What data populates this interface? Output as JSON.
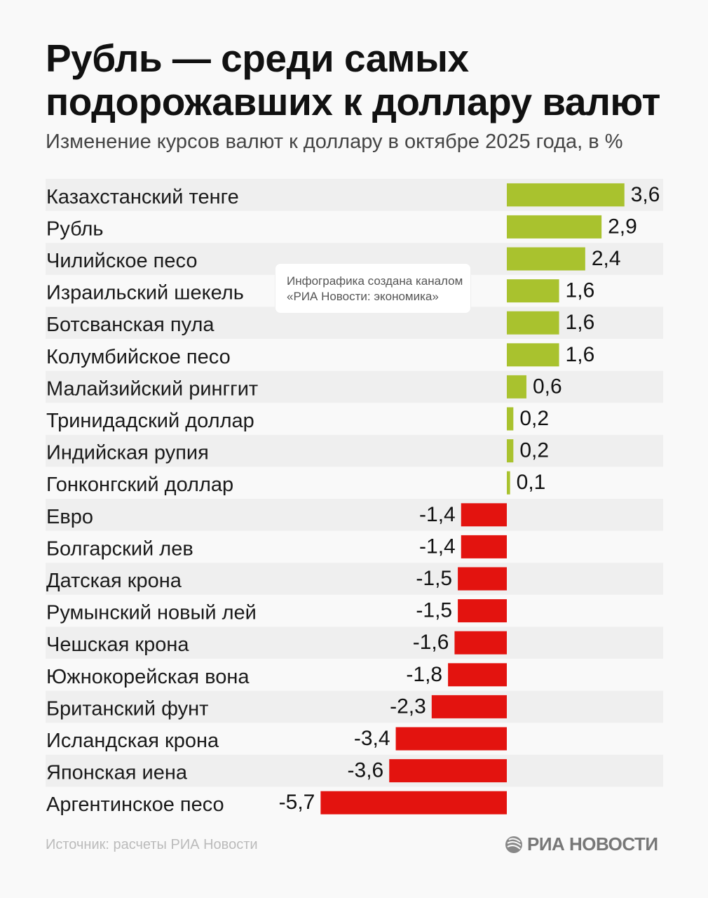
{
  "title_line1": "Рубль — среди самых",
  "title_line2": "подорожавших к доллару валют",
  "subtitle": "Изменение курсов валют к доллару в октябре 2025 года, в %",
  "note_line1": "Инфографика создана каналом",
  "note_line2": "«РИА Новости: экономика»",
  "source": "Источник: расчеты РИА Новости",
  "logo_text": "РИА НОВОСТИ",
  "colors": {
    "positive": "#a9c22e",
    "negative": "#e3130f",
    "stripe": "#efefef"
  },
  "chart_data": {
    "type": "bar",
    "orientation": "horizontal",
    "categories": [
      "Казахстанский тенге",
      "Рубль",
      "Чилийское песо",
      "Израильский шекель",
      "Ботсванская пула",
      "Колумбийское песо",
      "Малайзийский ринггит",
      "Тринидадский доллар",
      "Индийская рупия",
      "Гонконгский доллар",
      "Евро",
      "Болгарский лев",
      "Датская крона",
      "Румынский новый лей",
      "Чешская крона",
      "Южнокорейская вона",
      "Британский фунт",
      "Исландская крона",
      "Японская иена",
      "Аргентинское песо"
    ],
    "values": [
      3.6,
      2.9,
      2.4,
      1.6,
      1.6,
      1.6,
      0.6,
      0.2,
      0.2,
      0.1,
      -1.4,
      -1.4,
      -1.5,
      -1.5,
      -1.6,
      -1.8,
      -2.3,
      -3.4,
      -3.6,
      -5.7
    ],
    "labels": [
      "3,6",
      "2,9",
      "2,4",
      "1,6",
      "1,6",
      "1,6",
      "0,6",
      "0,2",
      "0,2",
      "0,1",
      "-1,4",
      "-1,4",
      "-1,5",
      "-1,5",
      "-1,6",
      "-1,8",
      "-2,3",
      "-3,4",
      "-3,6",
      "-5,7"
    ],
    "grid": false
  }
}
